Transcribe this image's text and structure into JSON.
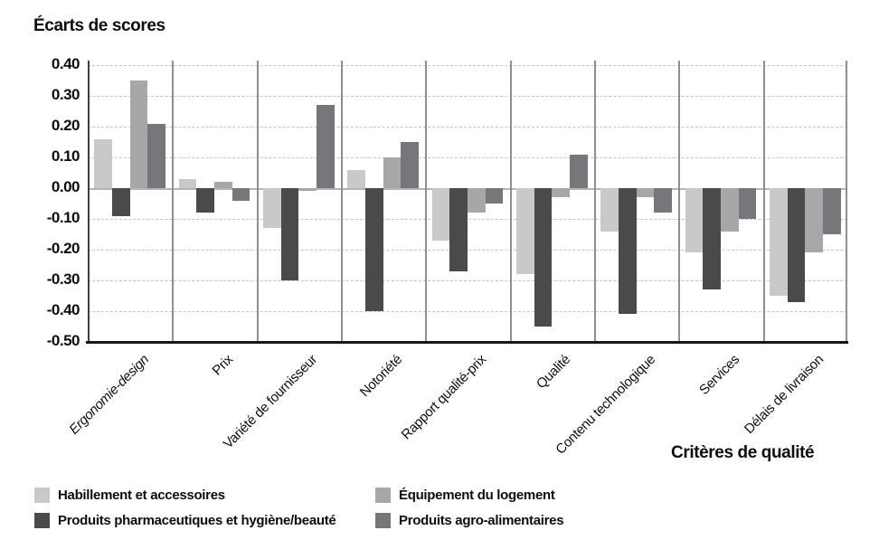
{
  "chart_data": {
    "type": "bar",
    "title": "Écarts de scores",
    "xlabel": "Critères de qualité",
    "ylabel": "Écarts de scores",
    "categories": [
      "Ergonomie-design",
      "Prix",
      "Variété de fournisseur",
      "Notoriété",
      "Rapport qualité-prix",
      "Qualité",
      "Contenu technologique",
      "Services",
      "Délais de livraison"
    ],
    "italic_categories": [
      "Ergonomie-design"
    ],
    "series": [
      {
        "name": "Habillement et accessoires",
        "color": "#c9c9cb",
        "values": [
          0.16,
          0.03,
          -0.13,
          0.06,
          -0.17,
          -0.28,
          -0.14,
          -0.21,
          -0.35
        ]
      },
      {
        "name": "Produits pharmaceutiques et hygiène/beauté",
        "color": "#4a4a4d",
        "values": [
          -0.09,
          -0.08,
          -0.3,
          -0.4,
          -0.27,
          -0.45,
          -0.41,
          -0.33,
          -0.37
        ]
      },
      {
        "name": "Équipement du logement",
        "color": "#a7a7aa",
        "values": [
          0.35,
          0.02,
          -0.01,
          0.1,
          -0.08,
          -0.03,
          -0.03,
          -0.14,
          -0.21
        ]
      },
      {
        "name": "Produits agro-alimentaires",
        "color": "#77777b",
        "values": [
          0.21,
          -0.04,
          0.27,
          0.15,
          -0.05,
          0.11,
          -0.08,
          -0.1,
          -0.15
        ]
      }
    ],
    "ylim": [
      -0.5,
      0.4
    ],
    "ytick_step": 0.1,
    "yticks": [
      "0.40",
      "0.30",
      "0.20",
      "0.10",
      "0.00",
      "-0.10",
      "-0.20",
      "-0.30",
      "-0.40",
      "-0.50"
    ],
    "grid": "horizontal-dashed",
    "legend_position": "bottom"
  },
  "legend_order": [
    0,
    2,
    1,
    3
  ]
}
